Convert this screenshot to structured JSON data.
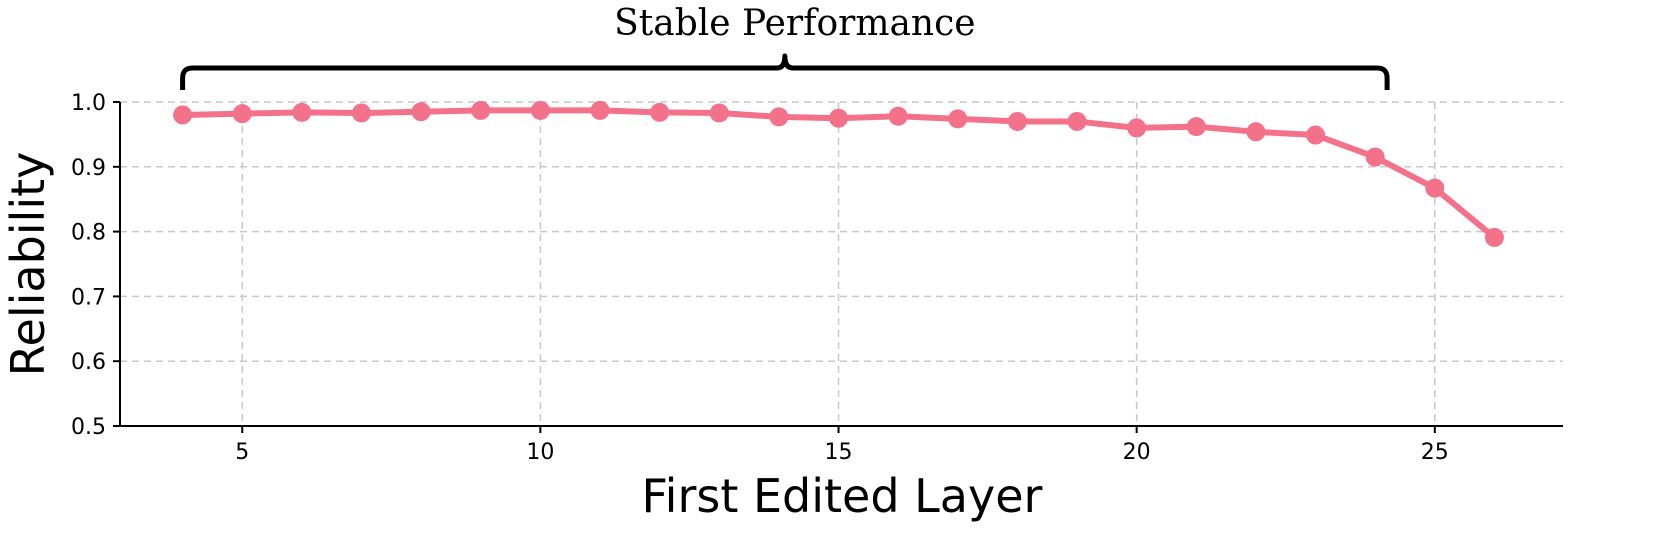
{
  "chart_data": {
    "type": "line",
    "xlabel": "First Edited Layer",
    "ylabel": "Reliability",
    "xlim": [
      2.95,
      27.15
    ],
    "ylim": [
      0.5,
      1.0
    ],
    "xticks": [
      5,
      10,
      15,
      20,
      25
    ],
    "yticks": [
      0.5,
      0.6,
      0.7,
      0.8,
      0.9,
      1.0
    ],
    "ytick_labels": [
      "0.5",
      "0.6",
      "0.7",
      "0.8",
      "0.9",
      "1.0"
    ],
    "grid": true,
    "series": [
      {
        "color": "#f4718a",
        "marker": "circle",
        "x": [
          4,
          5,
          6,
          7,
          8,
          9,
          10,
          11,
          12,
          13,
          14,
          15,
          16,
          17,
          18,
          19,
          20,
          21,
          22,
          23,
          24,
          25,
          26
        ],
        "y": [
          0.98,
          0.982,
          0.984,
          0.983,
          0.985,
          0.987,
          0.987,
          0.987,
          0.984,
          0.983,
          0.977,
          0.975,
          0.978,
          0.974,
          0.97,
          0.97,
          0.96,
          0.962,
          0.954,
          0.949,
          0.915,
          0.867,
          0.791
        ]
      }
    ],
    "annotation": {
      "text": "Stable Performance",
      "x_start": 4,
      "x_end": 24.2
    }
  }
}
